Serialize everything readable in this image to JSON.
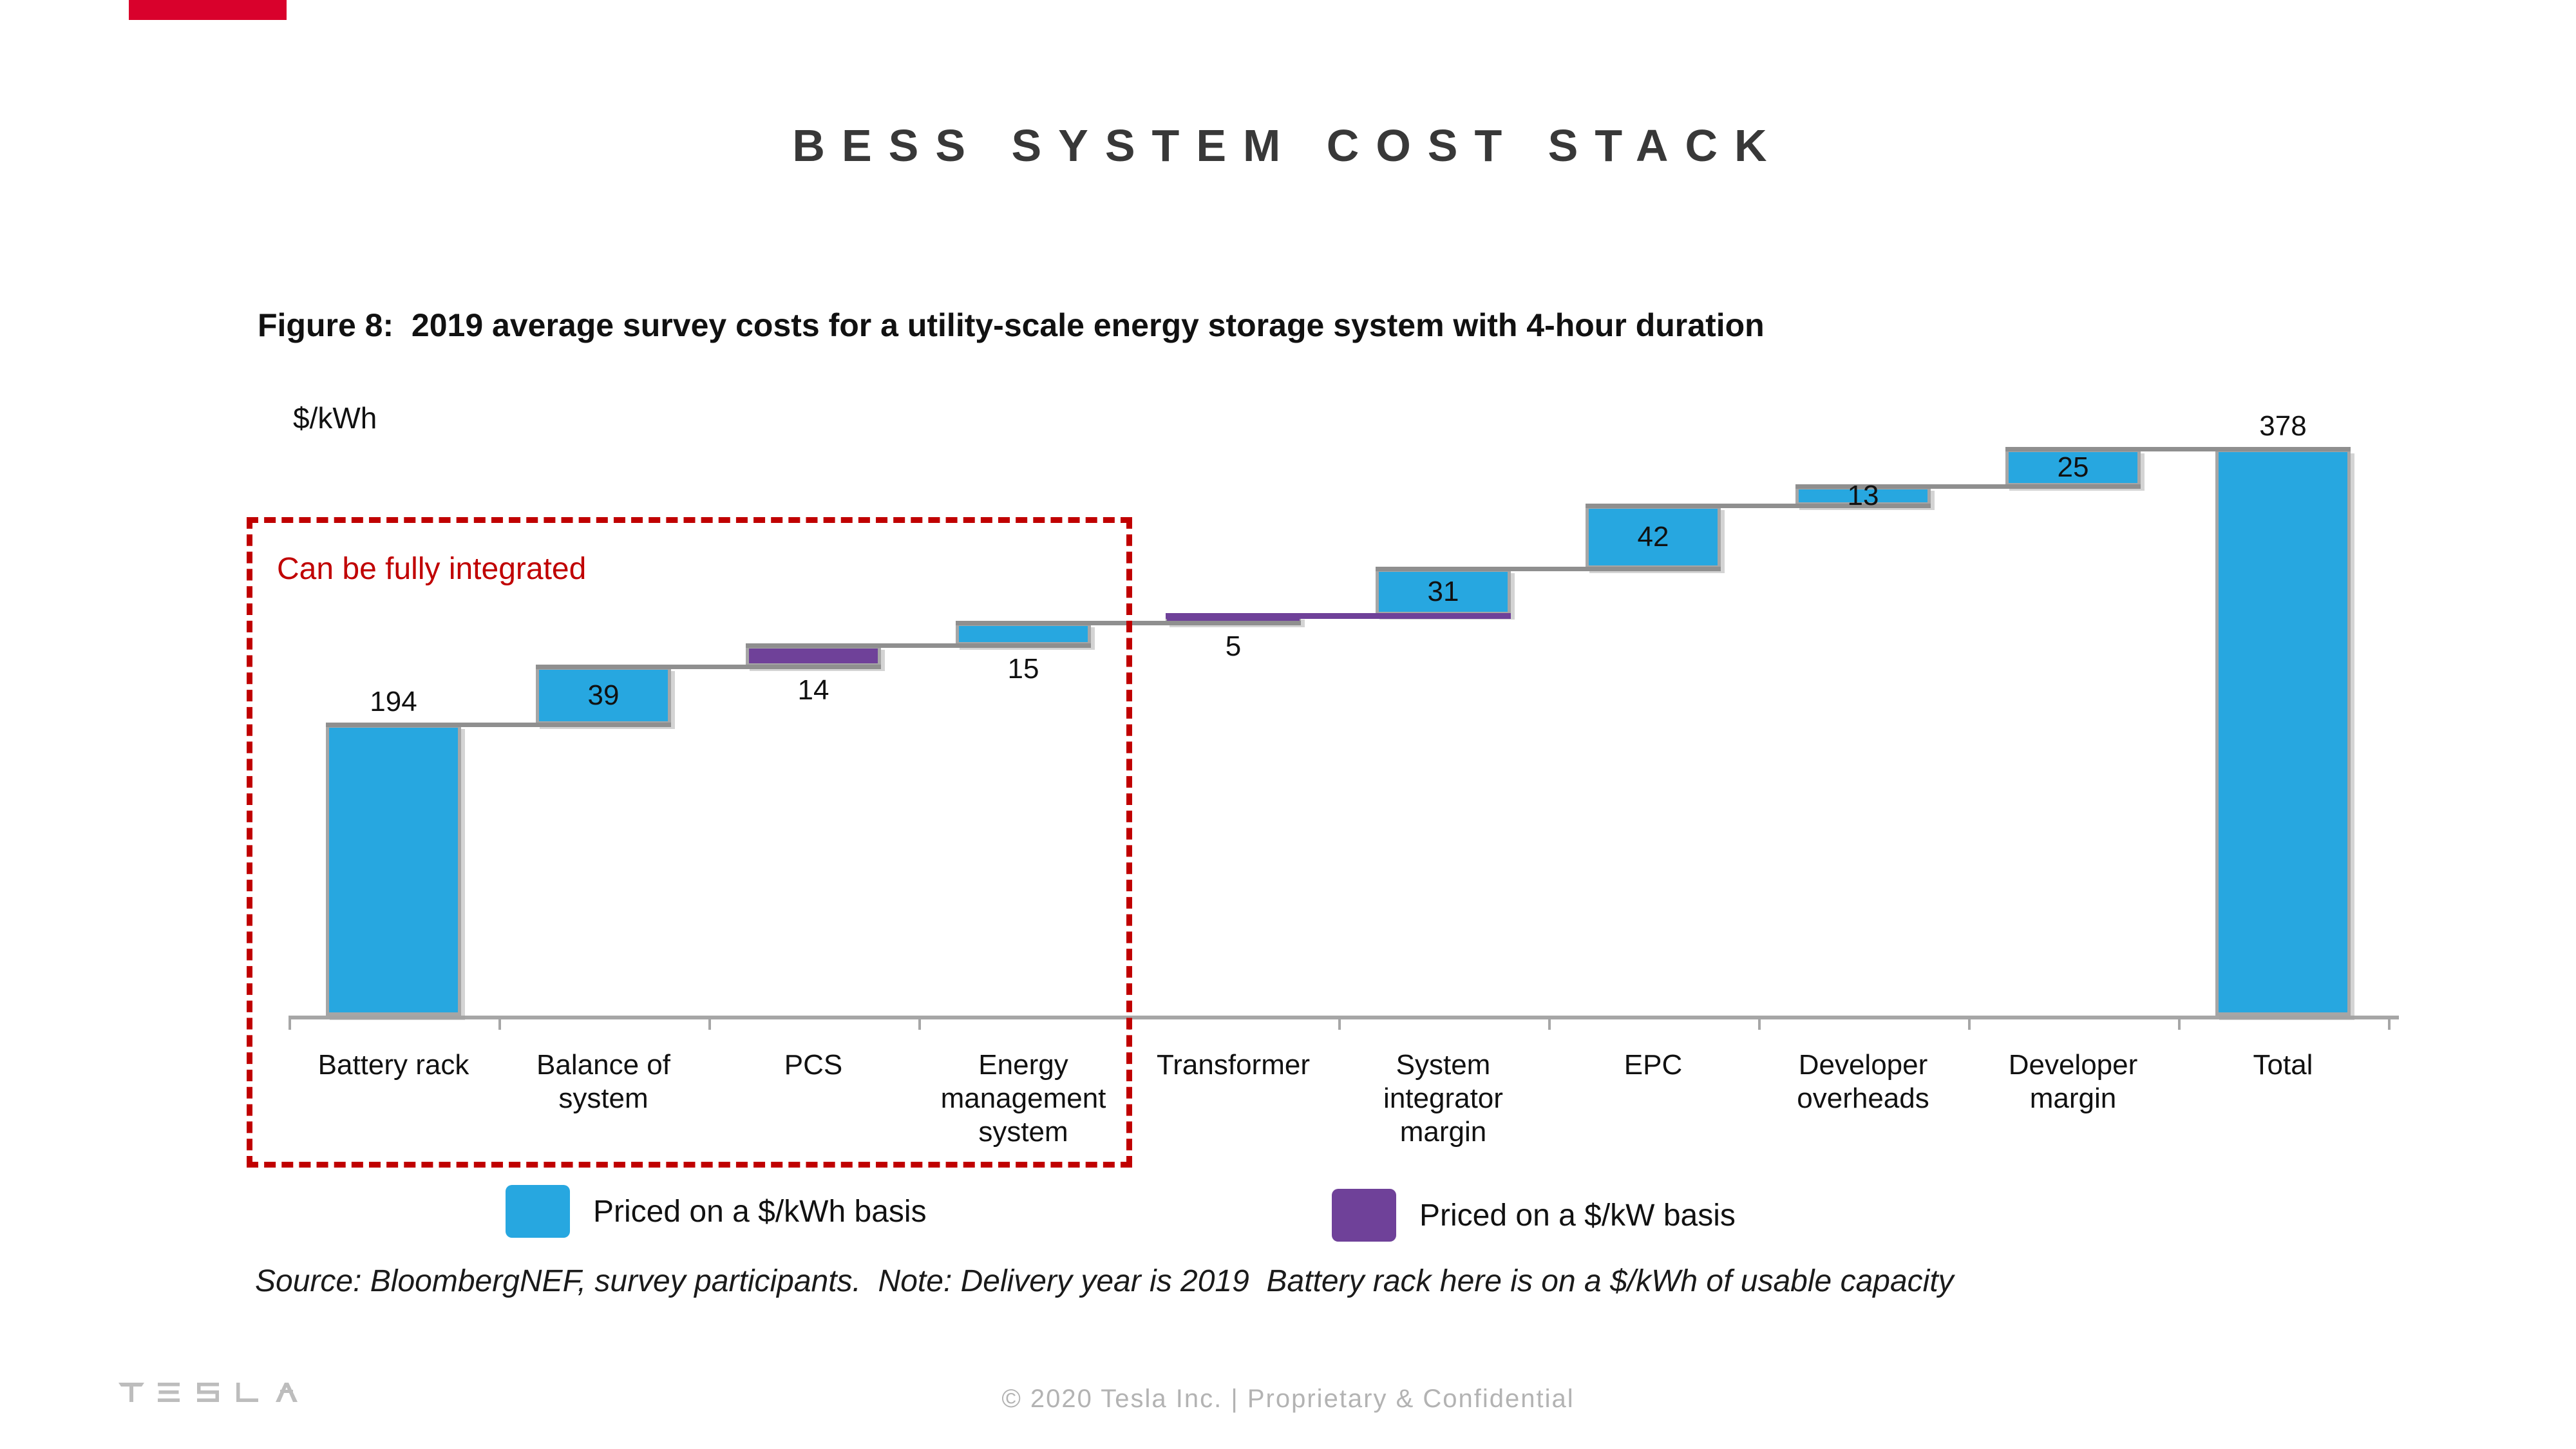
{
  "page": {
    "title": "BESS SYSTEM COST STACK",
    "figure_caption": "Figure 8:  2019 average survey costs for a utility-scale energy storage system with 4-hour duration",
    "footer": "© 2020 Tesla Inc. | Proprietary & Confidential"
  },
  "colors": {
    "accent_red": "#D9012C",
    "kwh_blue": "#27A7E0",
    "kw_purple": "#6F4199",
    "annotation_red": "#C00000",
    "bar_border": "#A6A6A6",
    "connector_gray": "#8F8F8F",
    "axis_gray": "#A6A6A6"
  },
  "legend": [
    {
      "label": "Priced on a $/kWh basis",
      "color_key": "kwh_blue"
    },
    {
      "label": "Priced on a $/kW basis",
      "color_key": "kw_purple"
    }
  ],
  "source_note": "Source: BloombergNEF, survey participants.  Note: Delivery year is 2019  Battery rack here is on a $/kWh of usable capacity",
  "chart_data": {
    "type": "waterfall",
    "unit_label": "$/kWh",
    "ylim": [
      0,
      378
    ],
    "grid": false,
    "legend_position": "bottom",
    "categories": [
      "Battery rack",
      "Balance of\nsystem",
      "PCS",
      "Energy\nmanagement\nsystem",
      "Transformer",
      "System\nintegrator\nmargin",
      "EPC",
      "Developer\noverheads",
      "Developer\nmargin",
      "Total"
    ],
    "values": [
      194,
      39,
      14,
      15,
      5,
      31,
      42,
      13,
      25,
      378
    ],
    "total_index": 9,
    "pricing_basis": [
      "$/kWh",
      "$/kWh",
      "$/kW",
      "$/kWh",
      "$/kW",
      "$/kWh",
      "$/kWh",
      "$/kWh",
      "$/kWh",
      "$/kWh"
    ],
    "value_label_positions": [
      "above",
      "inside",
      "below",
      "below",
      "below",
      "inside",
      "inside",
      "center",
      "inside",
      "above"
    ],
    "annotation_group": {
      "label": "Can be fully integrated",
      "covers_categories": [
        "Battery rack",
        "Balance of system",
        "PCS",
        "Energy management system"
      ]
    }
  }
}
